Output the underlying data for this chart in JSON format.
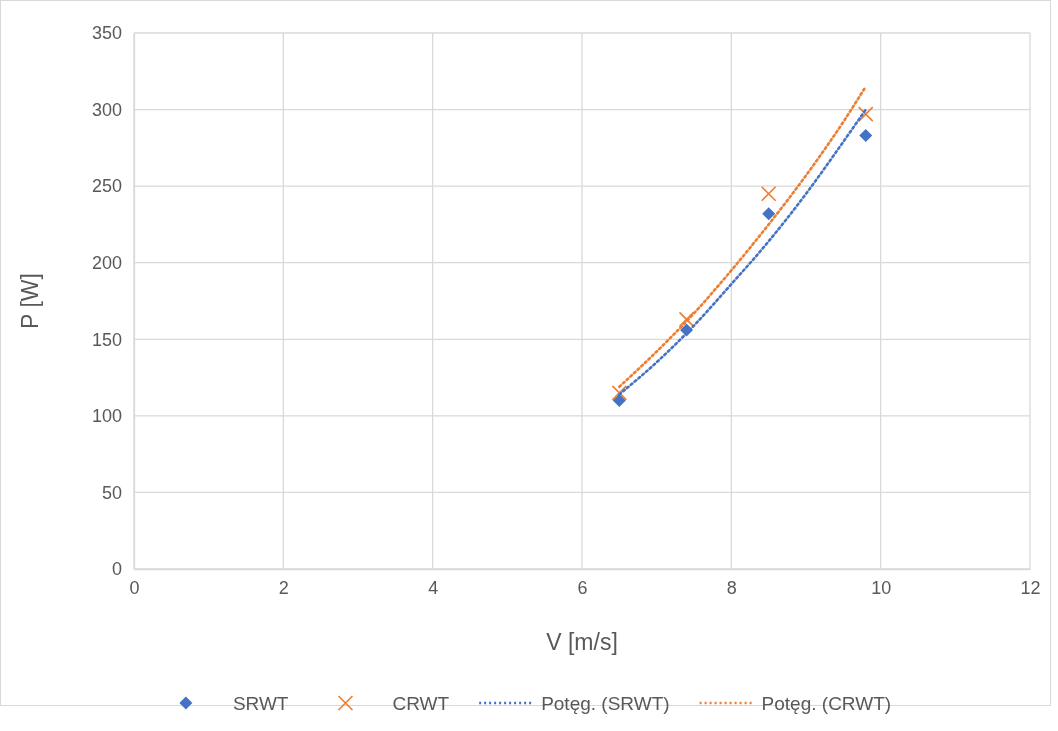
{
  "chart_data": {
    "type": "scatter",
    "xlabel": "V [m/s]",
    "ylabel": "P [W]",
    "xlim": [
      0,
      12
    ],
    "xticks": [
      0,
      2,
      4,
      6,
      8,
      10,
      12
    ],
    "ylim": [
      0,
      350
    ],
    "yticks": [
      0,
      50,
      100,
      150,
      200,
      250,
      300,
      350
    ],
    "grid": true,
    "legend": "bottom",
    "series": [
      {
        "name": "SRWT",
        "color": "#4472c4",
        "marker": "diamond",
        "x": [
          6.5,
          7.4,
          8.5,
          9.8
        ],
        "values": [
          110,
          156,
          232,
          283
        ]
      },
      {
        "name": "CRWT",
        "color": "#ed7d31",
        "marker": "cross",
        "x": [
          6.5,
          7.4,
          8.5,
          9.8
        ],
        "values": [
          115,
          163,
          245,
          297
        ]
      },
      {
        "name": "Potęg. (SRWT)",
        "type": "line",
        "color": "#4472c4",
        "marker": "none",
        "line_style": "dotted",
        "x": [
          6.5,
          7,
          7.5,
          8,
          8.5,
          9,
          9.5,
          9.8
        ],
        "values": [
          114,
          135,
          159,
          186,
          214,
          245,
          279,
          300
        ]
      },
      {
        "name": "Potęg. (CRWT)",
        "type": "line",
        "color": "#ed7d31",
        "marker": "none",
        "line_style": "dotted",
        "x": [
          6.5,
          7,
          7.5,
          8,
          8.5,
          9,
          9.5,
          9.8
        ],
        "values": [
          119,
          142,
          167,
          195,
          225,
          257,
          292,
          315
        ]
      }
    ]
  }
}
